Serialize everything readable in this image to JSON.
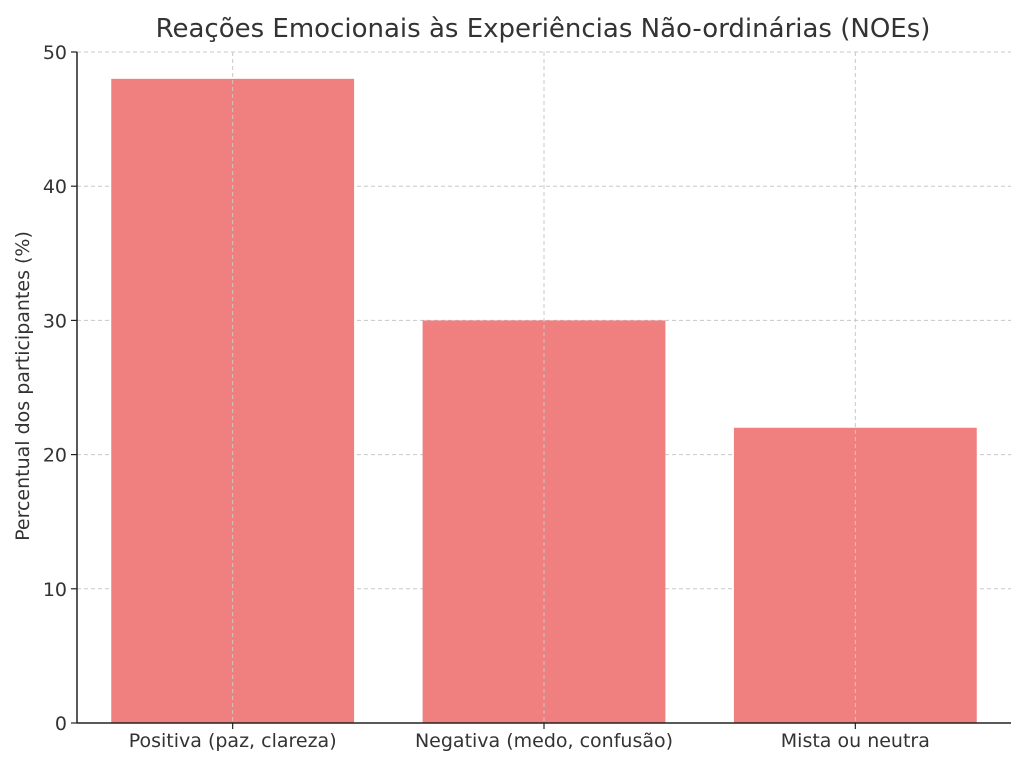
{
  "chart_data": {
    "type": "bar",
    "title": "Reações Emocionais às Experiências Não-ordinárias (NOEs)",
    "xlabel": "",
    "ylabel": "Percentual dos participantes (%)",
    "categories": [
      "Positiva (paz, clareza)",
      "Negativa (medo, confusão)",
      "Mista ou neutra"
    ],
    "values": [
      48,
      30,
      22
    ],
    "ylim": [
      0,
      50
    ],
    "yticks": [
      0,
      10,
      20,
      30,
      40,
      50
    ],
    "grid": true,
    "bar_color": "#f08080"
  }
}
